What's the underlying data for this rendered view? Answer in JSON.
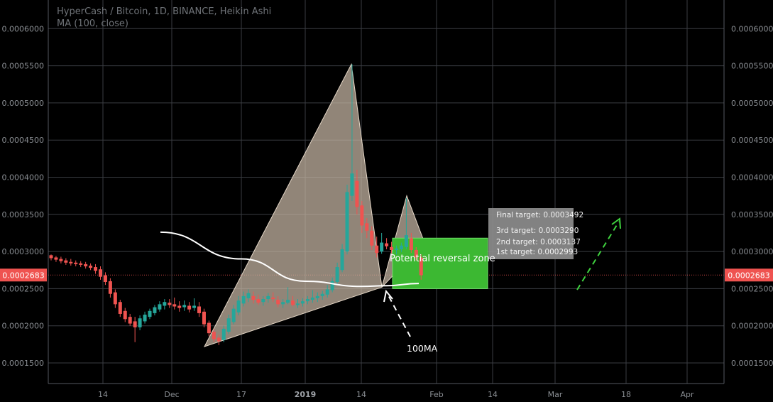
{
  "header": {
    "symbol_line": "HyperCash / Bitcoin, 1D, BINANCE, Heikin Ashi",
    "indicator_line": "MA (100, close)"
  },
  "colors": {
    "background": "#000000",
    "grid": "#3a3d42",
    "up_candle": "#26a69a",
    "down_candle": "#ef5350",
    "ma_line": "#ffffff",
    "pattern_fill": "#c9b8a6",
    "zone_fill": "#3cb832",
    "zone_border": "#6fe06a",
    "price_marker": "#ef5350",
    "projection_arrow": "#3fd23f"
  },
  "chart_data": {
    "type": "candlestick",
    "title": "HyperCash / Bitcoin, 1D, BINANCE, Heikin Ashi",
    "x_ticks": [
      "14",
      "Dec",
      "17",
      "2019",
      "14",
      "Feb",
      "14",
      "Mar",
      "18",
      "Apr"
    ],
    "bold_x_ticks": [
      "2019"
    ],
    "y_ticks": [
      "0.0006000",
      "0.0005500",
      "0.0005000",
      "0.0004500",
      "0.0004000",
      "0.0003500",
      "0.0003000",
      "0.0002500",
      "0.0002000",
      "0.0001500"
    ],
    "ylim": [
      0.0001,
      0.00063
    ],
    "current_price": "0.0002683",
    "grid": true,
    "candles": [
      [
        0.000295,
        0.000296,
        0.000288,
        0.000291
      ],
      [
        0.000292,
        0.000294,
        0.000286,
        0.000289
      ],
      [
        0.00029,
        0.000293,
        0.000284,
        0.000287
      ],
      [
        0.000288,
        0.000291,
        0.000282,
        0.000285
      ],
      [
        0.000286,
        0.00029,
        0.000281,
        0.000284
      ],
      [
        0.000285,
        0.000288,
        0.00028,
        0.000283
      ],
      [
        0.000284,
        0.000287,
        0.000279,
        0.000282
      ],
      [
        0.000283,
        0.000286,
        0.000277,
        0.00028
      ],
      [
        0.000281,
        0.000284,
        0.000275,
        0.000278
      ],
      [
        0.000279,
        0.000283,
        0.00027,
        0.000274
      ],
      [
        0.000276,
        0.00028,
        0.000262,
        0.000266
      ],
      [
        0.000268,
        0.000272,
        0.000255,
        0.000259
      ],
      [
        0.00026,
        0.000264,
        0.000238,
        0.000243
      ],
      [
        0.000245,
        0.000249,
        0.000224,
        0.000229
      ],
      [
        0.000232,
        0.000235,
        0.000212,
        0.000216
      ],
      [
        0.00022,
        0.000224,
        0.000205,
        0.000209
      ],
      [
        0.000212,
        0.000216,
        0.0002,
        0.000203
      ],
      [
        0.000206,
        0.000212,
        0.000178,
        0.000198
      ],
      [
        0.000198,
        0.000214,
        0.000194,
        0.00021
      ],
      [
        0.000206,
        0.000219,
        0.000203,
        0.000215
      ],
      [
        0.000212,
        0.000223,
        0.000209,
        0.00022
      ],
      [
        0.000217,
        0.000228,
        0.000214,
        0.000225
      ],
      [
        0.000222,
        0.000233,
        0.000219,
        0.000229
      ],
      [
        0.000227,
        0.000236,
        0.000222,
        0.000232
      ],
      [
        0.000231,
        0.000236,
        0.000224,
        0.000228
      ],
      [
        0.000229,
        0.000238,
        0.000222,
        0.000226
      ],
      [
        0.000227,
        0.000233,
        0.000219,
        0.000224
      ],
      [
        0.000225,
        0.000234,
        0.00022,
        0.000228
      ],
      [
        0.000227,
        0.000232,
        0.000218,
        0.000222
      ],
      [
        0.000224,
        0.000237,
        0.00022,
        0.000227
      ],
      [
        0.000226,
        0.000232,
        0.000212,
        0.000217
      ],
      [
        0.000219,
        0.000223,
        0.000198,
        0.000202
      ],
      [
        0.000204,
        0.000207,
        0.000186,
        0.00019
      ],
      [
        0.000192,
        0.000196,
        0.000178,
        0.000182
      ],
      [
        0.000184,
        0.000188,
        0.000174,
        0.000179
      ],
      [
        0.000181,
        0.0002,
        0.000178,
        0.000196
      ],
      [
        0.000192,
        0.000215,
        0.000189,
        0.00021
      ],
      [
        0.000205,
        0.000228,
        0.000202,
        0.000223
      ],
      [
        0.000218,
        0.00024,
        0.000214,
        0.000234
      ],
      [
        0.00023,
        0.000246,
        0.000226,
        0.00024
      ],
      [
        0.000237,
        0.000249,
        0.000232,
        0.000244
      ],
      [
        0.00024,
        0.000246,
        0.00023,
        0.000235
      ],
      [
        0.000236,
        0.000242,
        0.000228,
        0.000231
      ],
      [
        0.000232,
        0.00024,
        0.000227,
        0.000236
      ],
      [
        0.000236,
        0.000244,
        0.000231,
        0.00024
      ],
      [
        0.000238,
        0.000245,
        0.000232,
        0.000236
      ],
      [
        0.000235,
        0.00024,
        0.000225,
        0.000229
      ],
      [
        0.000229,
        0.000236,
        0.000224,
        0.000232
      ],
      [
        0.000231,
        0.000252,
        0.000229,
        0.000235
      ],
      [
        0.000234,
        0.00024,
        0.000226,
        0.000228
      ],
      [
        0.000228,
        0.000236,
        0.000224,
        0.00023
      ],
      [
        0.00023,
        0.000237,
        0.000226,
        0.000233
      ],
      [
        0.000233,
        0.00024,
        0.000229,
        0.000236
      ],
      [
        0.000235,
        0.000248,
        0.000231,
        0.000238
      ],
      [
        0.000237,
        0.000245,
        0.000232,
        0.00024
      ],
      [
        0.00024,
        0.000247,
        0.000235,
        0.000243
      ],
      [
        0.000242,
        0.000255,
        0.000238,
        0.000249
      ],
      [
        0.000248,
        0.000265,
        0.000245,
        0.00026
      ],
      [
        0.000259,
        0.000285,
        0.000255,
        0.000279
      ],
      [
        0.000275,
        0.00031,
        0.000272,
        0.000303
      ],
      [
        0.0003,
        0.00039,
        0.000296,
        0.00038
      ],
      [
        0.000375,
        0.000552,
        0.000368,
        0.000405
      ],
      [
        0.000395,
        0.00041,
        0.00035,
        0.00036
      ],
      [
        0.000362,
        0.000368,
        0.000325,
        0.000335
      ],
      [
        0.000338,
        0.000345,
        0.000318,
        0.000328
      ],
      [
        0.000328,
        0.000334,
        0.000302,
        0.000308
      ],
      [
        0.000308,
        0.00032,
        0.000292,
        0.000298
      ],
      [
        0.0003,
        0.000325,
        0.000297,
        0.000312
      ],
      [
        0.000311,
        0.000318,
        0.000303,
        0.000307
      ],
      [
        0.000306,
        0.000313,
        0.000298,
        0.000302
      ],
      [
        0.000302,
        0.000308,
        0.000296,
        0.000304
      ],
      [
        0.000303,
        0.000312,
        0.000299,
        0.000308
      ],
      [
        0.000306,
        0.000372,
        0.000303,
        0.000322
      ],
      [
        0.000318,
        0.000325,
        0.000298,
        0.000302
      ],
      [
        0.000302,
        0.000306,
        0.000288,
        0.000292
      ],
      [
        0.000292,
        0.000296,
        0.000262,
        0.000268
      ]
    ],
    "ma": {
      "name": "MA (100, close)",
      "points": [
        [
          "Dec",
          0.000326
        ],
        [
          "17",
          0.00029
        ],
        [
          "2019",
          0.00026
        ],
        [
          "14",
          0.000253
        ],
        [
          "",
          0.000254
        ],
        [
          "",
          0.000257
        ]
      ]
    },
    "pattern": {
      "X": 0.000172,
      "A": 0.000552,
      "B": 0.000252,
      "C": 0.000375,
      "D_zone": [
        0.00025,
        0.000318
      ]
    }
  },
  "annotations": {
    "zone_label": "Potential reversal zone",
    "ma_label": "100MA",
    "targets": [
      "Final target: 0.0003492",
      "3rd target: 0.0003290",
      "2nd target: 0.0003137",
      "1st target: 0.0002993"
    ]
  }
}
